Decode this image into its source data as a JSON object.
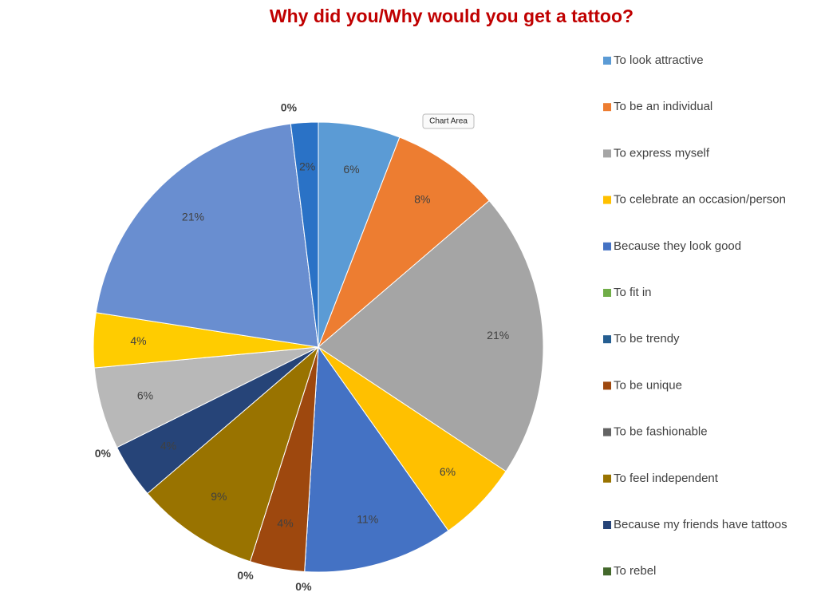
{
  "chart_data": {
    "type": "pie",
    "title": "Why did you/Why would you get a tattoo?",
    "tooltip": "Chart Area",
    "categories": [
      "To look attractive",
      "To be an individual",
      "To express myself",
      "To celebrate an occasion/person",
      "Because they look good",
      "To fit in",
      "To be trendy",
      "To be unique",
      "To be fashionable",
      "To feel independent",
      "Because my friends have tattoos",
      "To rebel",
      null,
      null,
      null,
      null,
      null
    ],
    "values": [
      6,
      8,
      21,
      6,
      11,
      0,
      0,
      4,
      0,
      9,
      4,
      0,
      6,
      4,
      21,
      0,
      2
    ],
    "value_labels": [
      "6%",
      "8%",
      "21%",
      "6%",
      "11%",
      "0%",
      null,
      "4%",
      "0%",
      "9%",
      "4%",
      "0%",
      "6%",
      "4%",
      "21%",
      "0%",
      "2%"
    ],
    "colors": [
      "#5b9bd5",
      "#ed7d31",
      "#a5a5a5",
      "#ffc000",
      "#4472c4",
      "#70ad47",
      "#255e91",
      "#9e480e",
      "#636363",
      "#997300",
      "#264478",
      "#43682b",
      "#b8b8b8",
      "#ffcc00",
      "#698ed0",
      "#8cc168",
      "#2a72c6"
    ],
    "legend": "right"
  }
}
